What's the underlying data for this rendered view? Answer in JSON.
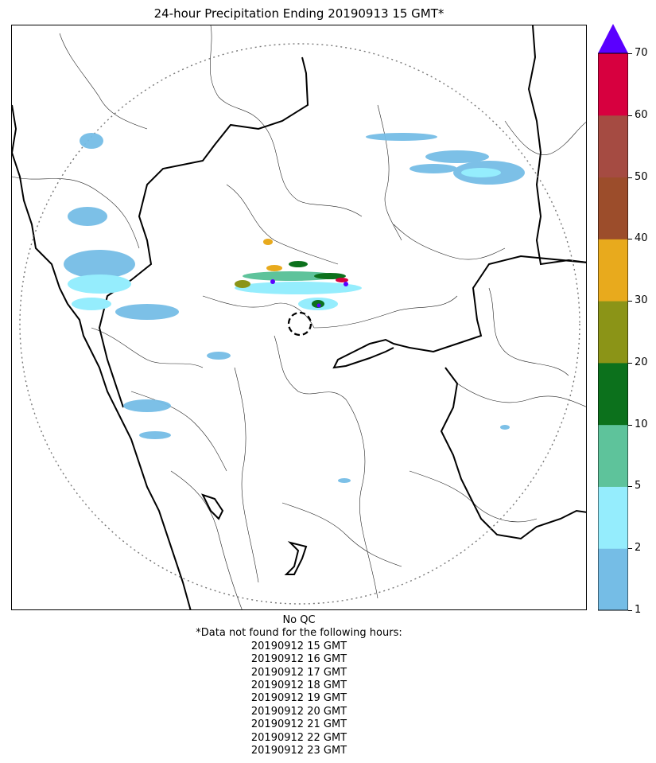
{
  "title": "24-hour Precipitation Ending 20190913 15 GMT*",
  "colorbar": {
    "labels": [
      "1",
      "2",
      "5",
      "10",
      "20",
      "30",
      "40",
      "50",
      "60",
      "70"
    ],
    "colors": [
      "#75bde6",
      "#95edfd",
      "#5ec39b",
      "#0c711c",
      "#8b9417",
      "#e8aa1d",
      "#9c4d2b",
      "#a54b42",
      "#d7003f"
    ],
    "over_color": "#5a00ff",
    "extend": "max"
  },
  "map": {
    "radar_marker": "dashed-circle",
    "range_ring": "dotted-circle",
    "boundaries": [
      "state-borders-bold",
      "district-borders-thin",
      "coastline-bold"
    ]
  },
  "notes": {
    "qc": "No QC",
    "missing_header": "*Data not found for the following hours:",
    "missing_hours": [
      "20190912 15 GMT",
      "20190912 16 GMT",
      "20190912 17 GMT",
      "20190912 18 GMT",
      "20190912 19 GMT",
      "20190912 20 GMT",
      "20190912 21 GMT",
      "20190912 22 GMT",
      "20190912 23 GMT"
    ]
  }
}
